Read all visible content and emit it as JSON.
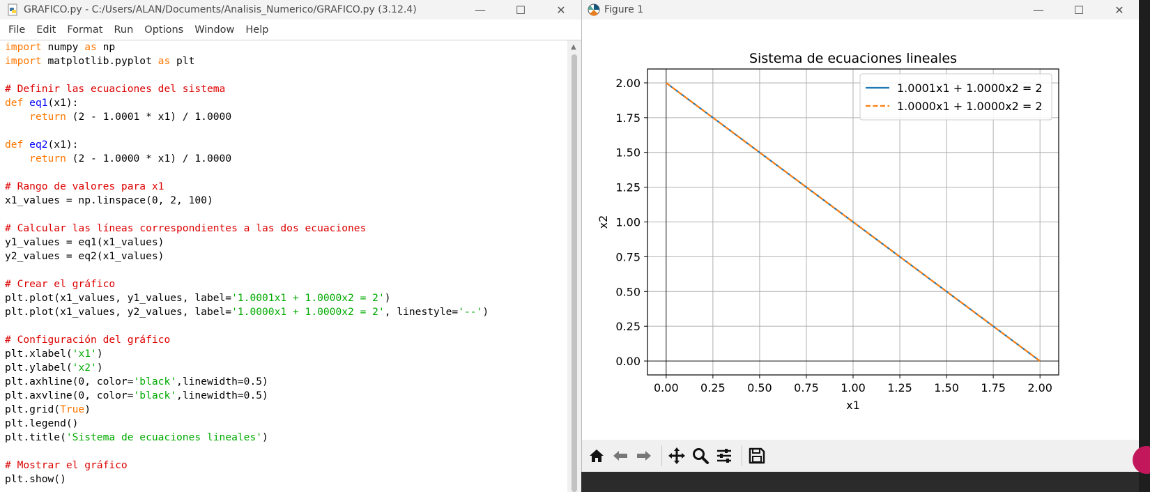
{
  "idle": {
    "title": "GRAFICO.py - C:/Users/ALAN/Documents/Analisis_Numerico/GRAFICO.py (3.12.4)",
    "menu": [
      "File",
      "Edit",
      "Format",
      "Run",
      "Options",
      "Window",
      "Help"
    ],
    "code_lines": [
      [
        [
          "kw",
          "import"
        ],
        [
          "t",
          " numpy "
        ],
        [
          "kw",
          "as"
        ],
        [
          "t",
          " np"
        ]
      ],
      [
        [
          "kw",
          "import"
        ],
        [
          "t",
          " matplotlib.pyplot "
        ],
        [
          "kw",
          "as"
        ],
        [
          "t",
          " plt"
        ]
      ],
      [],
      [
        [
          "cm",
          "# Definir las ecuaciones del sistema"
        ]
      ],
      [
        [
          "kw",
          "def"
        ],
        [
          "t",
          " "
        ],
        [
          "fn",
          "eq1"
        ],
        [
          "t",
          "(x1):"
        ]
      ],
      [
        [
          "t",
          "    "
        ],
        [
          "kw",
          "return"
        ],
        [
          "t",
          " (2 - 1.0001 * x1) / 1.0000"
        ]
      ],
      [],
      [
        [
          "kw",
          "def"
        ],
        [
          "t",
          " "
        ],
        [
          "fn",
          "eq2"
        ],
        [
          "t",
          "(x1):"
        ]
      ],
      [
        [
          "t",
          "    "
        ],
        [
          "kw",
          "return"
        ],
        [
          "t",
          " (2 - 1.0000 * x1) / 1.0000"
        ]
      ],
      [],
      [
        [
          "cm",
          "# Rango de valores para x1"
        ]
      ],
      [
        [
          "t",
          "x1_values = np.linspace(0, 2, 100)"
        ]
      ],
      [],
      [
        [
          "cm",
          "# Calcular las líneas correspondientes a las dos ecuaciones"
        ]
      ],
      [
        [
          "t",
          "y1_values = eq1(x1_values)"
        ]
      ],
      [
        [
          "t",
          "y2_values = eq2(x1_values)"
        ]
      ],
      [],
      [
        [
          "cm",
          "# Crear el gráfico"
        ]
      ],
      [
        [
          "t",
          "plt.plot(x1_values, y1_values, label="
        ],
        [
          "st",
          "'1.0001x1 + 1.0000x2 = 2'"
        ],
        [
          "t",
          ")"
        ]
      ],
      [
        [
          "t",
          "plt.plot(x1_values, y2_values, label="
        ],
        [
          "st",
          "'1.0000x1 + 1.0000x2 = 2'"
        ],
        [
          "t",
          ", linestyle="
        ],
        [
          "st",
          "'--'"
        ],
        [
          "t",
          ")"
        ]
      ],
      [],
      [
        [
          "cm",
          "# Configuración del gráfico"
        ]
      ],
      [
        [
          "t",
          "plt.xlabel("
        ],
        [
          "st",
          "'x1'"
        ],
        [
          "t",
          ")"
        ]
      ],
      [
        [
          "t",
          "plt.ylabel("
        ],
        [
          "st",
          "'x2'"
        ],
        [
          "t",
          ")"
        ]
      ],
      [
        [
          "t",
          "plt.axhline(0, color="
        ],
        [
          "st",
          "'black'"
        ],
        [
          "t",
          ",linewidth=0.5)"
        ]
      ],
      [
        [
          "t",
          "plt.axvline(0, color="
        ],
        [
          "st",
          "'black'"
        ],
        [
          "t",
          ",linewidth=0.5)"
        ]
      ],
      [
        [
          "t",
          "plt.grid("
        ],
        [
          "kw",
          "True"
        ],
        [
          "t",
          ")"
        ]
      ],
      [
        [
          "t",
          "plt.legend()"
        ]
      ],
      [
        [
          "t",
          "plt.title("
        ],
        [
          "st",
          "'Sistema de ecuaciones lineales'"
        ],
        [
          "t",
          ")"
        ]
      ],
      [],
      [
        [
          "cm",
          "# Mostrar el gráfico"
        ]
      ],
      [
        [
          "t",
          "plt.show()"
        ]
      ]
    ]
  },
  "figure": {
    "title": "Figure 1",
    "toolbar_icons": [
      "home-icon",
      "back-icon",
      "forward-icon",
      "pan-icon",
      "zoom-icon",
      "configure-subplots-icon",
      "save-icon"
    ]
  },
  "chart_data": {
    "type": "line",
    "title": "Sistema de ecuaciones lineales",
    "xlabel": "x1",
    "ylabel": "x2",
    "xlim": [
      -0.1,
      2.1
    ],
    "ylim": [
      -0.1,
      2.1
    ],
    "xticks": [
      "0.00",
      "0.25",
      "0.50",
      "0.75",
      "1.00",
      "1.25",
      "1.50",
      "1.75",
      "2.00"
    ],
    "yticks": [
      "0.00",
      "0.25",
      "0.50",
      "0.75",
      "1.00",
      "1.25",
      "1.50",
      "1.75",
      "2.00"
    ],
    "grid": true,
    "legend_position": "top-right",
    "series": [
      {
        "name": "1.0001x1 + 1.0000x2 = 2",
        "x": [
          0,
          2
        ],
        "y": [
          2.0,
          -0.0002
        ],
        "color": "#1f77b4",
        "linestyle": "solid"
      },
      {
        "name": "1.0000x1 + 1.0000x2 = 2",
        "x": [
          0,
          2
        ],
        "y": [
          2.0,
          0.0
        ],
        "color": "#ff7f0e",
        "linestyle": "dashed"
      }
    ],
    "hlines": [
      0
    ],
    "vlines": [
      0
    ]
  }
}
